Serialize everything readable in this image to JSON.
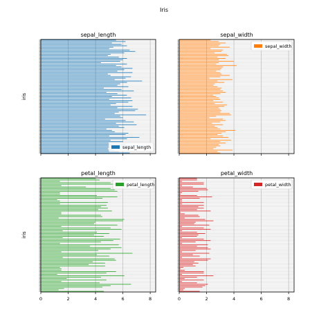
{
  "figure": {
    "suptitle": "Iris",
    "ylabel": "iris"
  },
  "chart_data": [
    {
      "type": "bar",
      "orientation": "horizontal",
      "title": "sepal_length",
      "ylabel": "iris",
      "xlabel": "",
      "xlim": [
        0,
        8.4
      ],
      "xticks": [
        0,
        2,
        4,
        6,
        8
      ],
      "show_xtick_labels": false,
      "grid": true,
      "legend_position": "lower right",
      "color": "#1f77b4",
      "series": [
        {
          "name": "sepal_length",
          "values": [
            6.5,
            5.7,
            5.4,
            4.9,
            5.8,
            7.6,
            6.2,
            5.0,
            6.0,
            5.1,
            6.3,
            7.2,
            5.0,
            6.2,
            6.4,
            5.4,
            5.2,
            4.8,
            6.1,
            5.7,
            7.0,
            5.5,
            6.8,
            6.2,
            4.7,
            6.0,
            5.8,
            7.7,
            5.4,
            5.7,
            6.9,
            7.1,
            5.6,
            6.7,
            5.1,
            5.5,
            6.4,
            6.7,
            5.0,
            6.6,
            5.2,
            6.3,
            5.6,
            4.8,
            6.8,
            5.9,
            4.6,
            6.4,
            5.6,
            5.8,
            6.3,
            7.4,
            5.4,
            6.2,
            6.6,
            5.1,
            4.9,
            6.7,
            5.6,
            6.1,
            6.7,
            5.9,
            5.5,
            6.3,
            4.4,
            5.8,
            6.0,
            6.3,
            5.7,
            4.9,
            5.1,
            6.1,
            6.9,
            6.5,
            5.0,
            5.3,
            6.3,
            5.9,
            5.2,
            6.2,
            5.5
          ]
        }
      ]
    },
    {
      "type": "bar",
      "orientation": "horizontal",
      "title": "sepal_width",
      "ylabel": "",
      "xlabel": "",
      "xlim": [
        0,
        8.4
      ],
      "xticks": [
        0,
        2,
        4,
        6,
        8
      ],
      "show_xtick_labels": false,
      "grid": true,
      "legend_position": "upper right",
      "color": "#ff7f0e",
      "series": [
        {
          "name": "sepal_width",
          "values": [
            3.0,
            2.8,
            3.9,
            2.5,
            2.7,
            3.0,
            2.9,
            3.4,
            3.0,
            3.8,
            2.3,
            3.6,
            3.2,
            2.8,
            3.1,
            3.4,
            4.1,
            3.0,
            2.8,
            2.6,
            3.2,
            2.4,
            3.0,
            3.4,
            3.2,
            2.2,
            2.7,
            3.8,
            3.7,
            3.0,
            3.1,
            3.0,
            2.9,
            3.3,
            3.5,
            2.6,
            3.2,
            2.5,
            3.0,
            2.9,
            2.7,
            2.5,
            3.0,
            3.4,
            3.2,
            3.0,
            3.1,
            2.8,
            2.5,
            2.6,
            3.3,
            2.8,
            3.9,
            2.2,
            3.0,
            3.7,
            3.1,
            3.0,
            2.7,
            3.0,
            3.1,
            3.2,
            4.2,
            2.7,
            2.9,
            4.0,
            2.9,
            3.4,
            2.8,
            3.6,
            3.5,
            2.6,
            3.1,
            3.2,
            2.3,
            3.7,
            2.9,
            3.0,
            3.4,
            2.9,
            2.3
          ]
        }
      ]
    },
    {
      "type": "bar",
      "orientation": "horizontal",
      "title": "petal_length",
      "ylabel": "iris",
      "xlabel": "",
      "xlim": [
        0,
        8.4
      ],
      "xticks": [
        0,
        2,
        4,
        6,
        8
      ],
      "show_xtick_labels": true,
      "grid": true,
      "legend_position": "upper right",
      "color": "#2ca02c",
      "series": [
        {
          "name": "petal_length",
          "values": [
            4.6,
            1.3,
            1.7,
            4.5,
            5.1,
            6.6,
            4.3,
            1.5,
            4.8,
            1.9,
            4.4,
            6.1,
            1.2,
            4.8,
            5.5,
            1.5,
            1.5,
            1.4,
            4.7,
            3.5,
            4.7,
            3.8,
            5.5,
            5.4,
            1.6,
            5.0,
            4.1,
            6.7,
            1.5,
            4.2,
            5.1,
            5.9,
            3.6,
            5.7,
            1.4,
            4.4,
            5.3,
            5.8,
            1.6,
            4.6,
            3.9,
            5.0,
            4.1,
            1.6,
            5.9,
            5.1,
            1.5,
            5.6,
            3.9,
            4.0,
            6.0,
            6.1,
            1.3,
            4.5,
            4.4,
            1.5,
            1.5,
            5.2,
            4.2,
            4.9,
            4.4,
            4.8,
            1.4,
            4.9,
            1.4,
            1.2,
            4.5,
            5.6,
            4.1,
            1.4,
            1.4,
            5.6,
            5.4,
            5.1,
            3.3,
            1.5,
            5.6,
            5.1,
            1.4,
            4.3,
            4.0
          ]
        }
      ]
    },
    {
      "type": "bar",
      "orientation": "horizontal",
      "title": "petal_width",
      "ylabel": "",
      "xlabel": "",
      "xlim": [
        0,
        8.4
      ],
      "xticks": [
        0,
        2,
        4,
        6,
        8
      ],
      "show_xtick_labels": true,
      "grid": true,
      "legend_position": "upper right",
      "color": "#d62728",
      "series": [
        {
          "name": "petal_width",
          "values": [
            1.5,
            0.3,
            0.4,
            1.7,
            1.9,
            2.1,
            1.3,
            0.2,
            1.8,
            0.4,
            1.3,
            2.5,
            0.2,
            1.8,
            1.8,
            0.4,
            0.1,
            0.3,
            1.2,
            1.0,
            1.4,
            1.1,
            2.1,
            2.3,
            0.2,
            1.5,
            1.0,
            2.2,
            0.2,
            1.2,
            2.3,
            2.1,
            1.3,
            2.1,
            0.2,
            1.2,
            2.3,
            1.8,
            0.2,
            1.3,
            1.4,
            1.9,
            1.3,
            0.2,
            2.3,
            1.8,
            0.2,
            2.2,
            1.1,
            1.2,
            2.5,
            1.9,
            0.4,
            1.5,
            1.4,
            0.4,
            0.1,
            2.3,
            1.3,
            1.8,
            1.4,
            1.8,
            0.2,
            1.8,
            0.2,
            0.2,
            1.5,
            2.4,
            1.3,
            0.1,
            0.2,
            1.4,
            2.1,
            2.0,
            1.0,
            0.2,
            1.8,
            1.8,
            0.2,
            1.3,
            1.3
          ]
        }
      ]
    }
  ]
}
